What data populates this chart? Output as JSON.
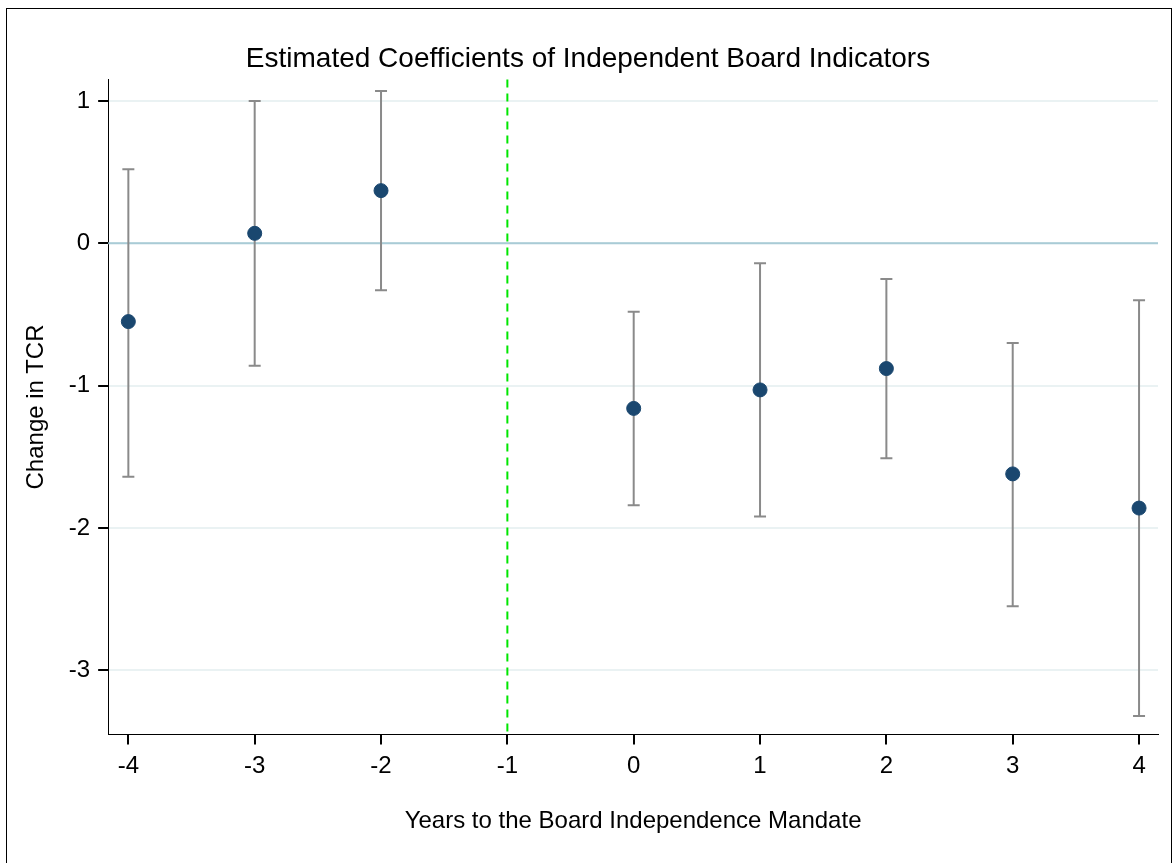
{
  "chart_data": {
    "type": "scatter",
    "title": "Estimated Coefficients of Independent Board Indicators",
    "xlabel": "Years to the Board Independence Mandate",
    "ylabel": "Change in TCR",
    "x": [
      -4,
      -3,
      -2,
      0,
      1,
      2,
      3,
      4
    ],
    "series": [
      {
        "color": "#1a476f",
        "values": [
          -0.55,
          0.07,
          0.37,
          -1.16,
          -1.03,
          -0.88,
          -1.62,
          -1.86
        ],
        "errors": [
          [
            -1.64,
            0.52
          ],
          [
            -0.86,
            1.0
          ],
          [
            -0.33,
            1.07
          ],
          [
            -1.84,
            -0.48
          ],
          [
            -1.92,
            -0.14
          ],
          [
            -1.51,
            -0.25
          ],
          [
            -2.55,
            -0.7
          ],
          [
            -3.32,
            -0.4
          ]
        ]
      }
    ],
    "xlim": [
      -4.16,
      4.15
    ],
    "xticks": [
      -4,
      -3,
      -2,
      -1,
      0,
      1,
      2,
      3,
      4
    ],
    "ylim": [
      -3.45,
      1.15
    ],
    "yticks": [
      -3,
      -2,
      -1,
      0,
      1
    ],
    "grid": "y",
    "marker": "circle",
    "legend": false,
    "ref_lines": [
      {
        "axis": "y",
        "value": 0,
        "color": "#a9cbd6",
        "line_style": "solid"
      },
      {
        "axis": "x",
        "value": -1,
        "color": "#00e600",
        "line_style": "dashed"
      }
    ]
  }
}
